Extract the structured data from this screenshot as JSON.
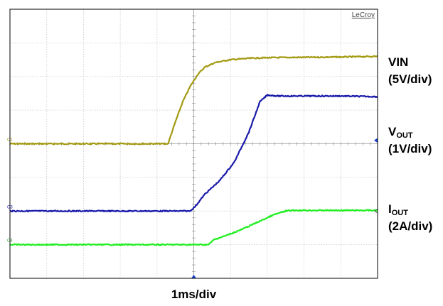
{
  "chart_data": {
    "type": "line",
    "brand": "LeCroy",
    "timebase": "1ms/div",
    "x_divisions": 10,
    "y_divisions": 8,
    "xlim": [
      0,
      10
    ],
    "ylim": [
      -4,
      4
    ],
    "grid": true,
    "background": "#ffffff",
    "grid_color": "#c8c8c8",
    "frame_color": "#000000",
    "series": [
      {
        "name": "VIN",
        "label_main": "VIN",
        "label_sub": "",
        "scale": "(5V/div)",
        "channel_tag": "C1",
        "color": "#a39a12",
        "x": [
          0,
          4.3,
          4.5,
          4.7,
          4.9,
          5.1,
          5.3,
          5.6,
          6.0,
          6.5,
          7.0,
          8.0,
          9.0,
          10.0
        ],
        "y": [
          0,
          0,
          0.65,
          1.25,
          1.7,
          2.05,
          2.28,
          2.42,
          2.5,
          2.54,
          2.56,
          2.57,
          2.58,
          2.6
        ]
      },
      {
        "name": "VOUT",
        "label_main": "V",
        "label_sub": "OUT",
        "scale": "(1V/div)",
        "channel_tag": "C3",
        "color": "#1a1aaa",
        "x": [
          0,
          4.9,
          5.05,
          5.3,
          5.7,
          6.1,
          6.5,
          6.8,
          7.0,
          7.3,
          8.0,
          9.0,
          10.0
        ],
        "y": [
          -2,
          -2,
          -1.85,
          -1.5,
          -1.1,
          -0.55,
          0.35,
          1.25,
          1.45,
          1.42,
          1.42,
          1.42,
          1.4
        ]
      },
      {
        "name": "IOUT",
        "label_main": "I",
        "label_sub": "OUT",
        "scale": "(2A/div)",
        "channel_tag": "C4",
        "color": "#22ee22",
        "x": [
          0,
          5.4,
          5.55,
          5.9,
          6.3,
          6.8,
          7.2,
          7.5,
          7.7,
          8.0,
          9.0,
          10.0
        ],
        "y": [
          -3,
          -3,
          -2.85,
          -2.72,
          -2.55,
          -2.3,
          -2.1,
          -2.0,
          -1.98,
          -1.98,
          -1.98,
          -1.98
        ]
      }
    ],
    "markers": {
      "trigger_level": 0.1,
      "offset_right": -2
    }
  }
}
